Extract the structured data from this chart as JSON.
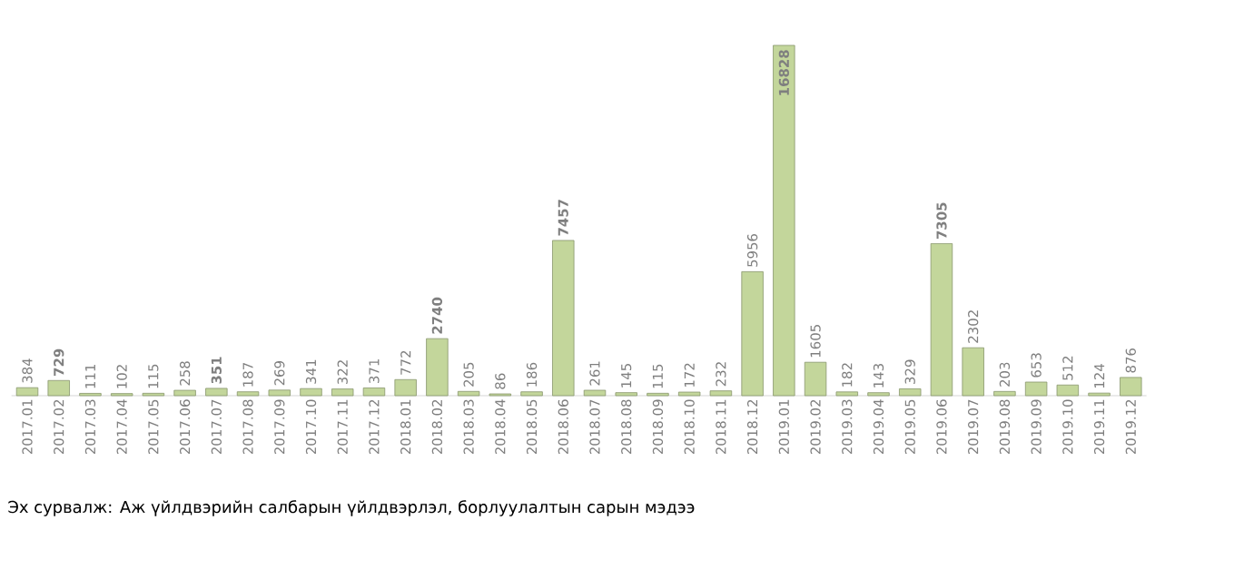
{
  "chart_data": {
    "type": "bar",
    "categories": [
      "2017.01",
      "2017.02",
      "2017.03",
      "2017.04",
      "2017.05",
      "2017.06",
      "2017.07",
      "2017.08",
      "2017.09",
      "2017.10",
      "2017.11",
      "2017.12",
      "2018.01",
      "2018.02",
      "2018.03",
      "2018.04",
      "2018.05",
      "2018.06",
      "2018.07",
      "2018.08",
      "2018.09",
      "2018.10",
      "2018.11",
      "2018.12",
      "2019.01",
      "2019.02",
      "2019.03",
      "2019.04",
      "2019.05",
      "2019.06",
      "2019.07",
      "2019.08",
      "2019.09",
      "2019.10",
      "2019.11",
      "2019.12"
    ],
    "values": [
      384,
      729,
      111,
      102,
      115,
      258,
      351,
      187,
      269,
      341,
      322,
      371,
      772,
      2740,
      205,
      86,
      186,
      7457,
      261,
      145,
      115,
      172,
      232,
      5956,
      16828,
      1605,
      182,
      143,
      329,
      7305,
      2302,
      203,
      653,
      512,
      124,
      876
    ],
    "value_labels": [
      "384",
      "**729**",
      "111",
      "102",
      "115",
      "258",
      "**351**",
      "187",
      "269",
      "341",
      "322",
      "371",
      "772",
      "**2740**",
      "205",
      "86",
      "186",
      "**7457**",
      "261",
      "145",
      "115",
      "172",
      "232",
      "5956",
      "**16828**",
      "1605",
      "182",
      "143",
      "329",
      "**7305**",
      "2302",
      "203",
      "653",
      "512",
      "124",
      "876"
    ],
    "color": "#c3d69b",
    "tick_labels": "x",
    "annotations": [
      "Эх сурвалж: Аж үйлдвэрийн салбарын үйлдвэрлэл, борлуулалтын сарын мэдээ"
    ]
  }
}
